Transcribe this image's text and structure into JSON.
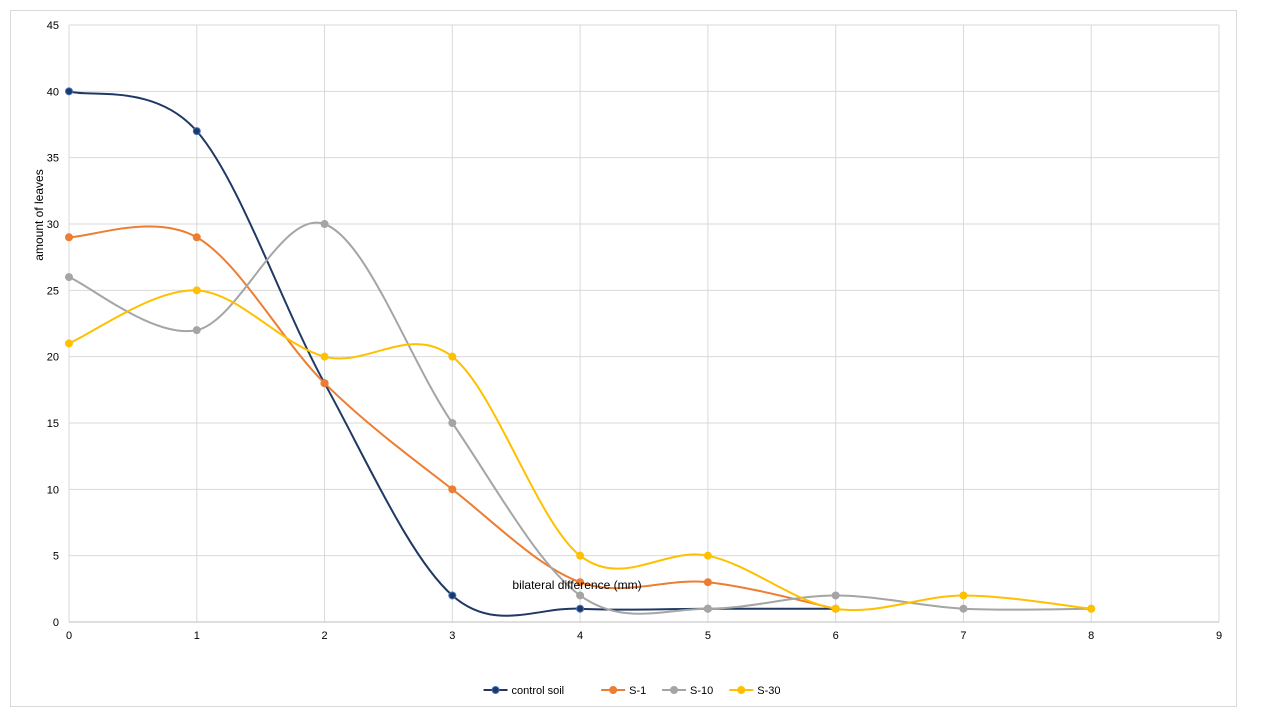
{
  "chart_data": {
    "type": "line",
    "title": "",
    "xlabel": "bilateral difference  (mm)",
    "ylabel": "amount of leaves",
    "xlim": [
      0,
      9
    ],
    "ylim": [
      0,
      45
    ],
    "x_ticks": [
      "0",
      "1",
      "2",
      "3",
      "4",
      "5",
      "6",
      "7",
      "8",
      "9"
    ],
    "y_ticks": [
      "0",
      "5",
      "10",
      "15",
      "20",
      "25",
      "30",
      "35",
      "40",
      "45"
    ],
    "grid": true,
    "smooth": true,
    "legend_position": "bottom",
    "series": [
      {
        "name": "control soil",
        "color": "#1f3864",
        "points": [
          [
            0,
            40
          ],
          [
            1,
            37
          ],
          [
            2,
            18
          ],
          [
            3,
            2
          ],
          [
            4,
            1
          ],
          [
            5,
            1
          ],
          [
            6,
            1
          ]
        ]
      },
      {
        "name": "S-1",
        "color": "#ed7d31",
        "points": [
          [
            0,
            29
          ],
          [
            1,
            29
          ],
          [
            2,
            18
          ],
          [
            3,
            10
          ],
          [
            4,
            3
          ],
          [
            5,
            3
          ],
          [
            6,
            1
          ]
        ]
      },
      {
        "name": "S-10",
        "color": "#a5a5a5",
        "points": [
          [
            0,
            26
          ],
          [
            1,
            22
          ],
          [
            2,
            30
          ],
          [
            3,
            15
          ],
          [
            4,
            2
          ],
          [
            5,
            1
          ],
          [
            6,
            2
          ],
          [
            7,
            1
          ],
          [
            8,
            1
          ]
        ]
      },
      {
        "name": "S-30",
        "color": "#ffc000",
        "points": [
          [
            0,
            21
          ],
          [
            1,
            25
          ],
          [
            2,
            20
          ],
          [
            3,
            20
          ],
          [
            4,
            5
          ],
          [
            5,
            5
          ],
          [
            6,
            1
          ],
          [
            7,
            2
          ],
          [
            8,
            1
          ]
        ]
      }
    ]
  }
}
